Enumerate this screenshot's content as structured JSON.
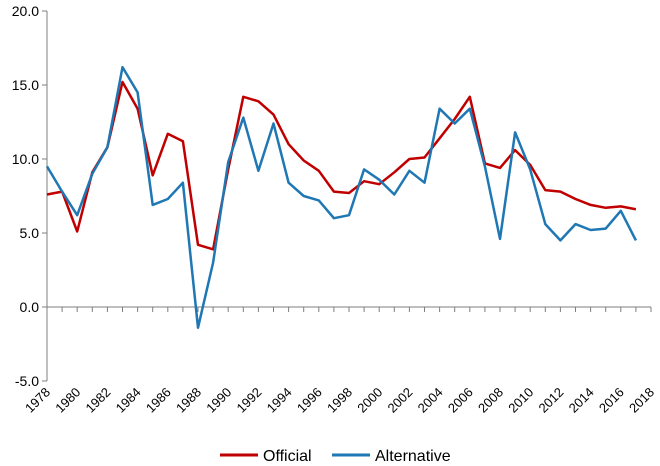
{
  "chart_data": {
    "type": "line",
    "title": "",
    "xlabel": "",
    "ylabel": "",
    "ylim": [
      -5.0,
      20.0
    ],
    "yticks": [
      "20.0",
      "15.0",
      "10.0",
      "5.0",
      "0.0",
      "-5.0"
    ],
    "xticks": [
      "1978",
      "1980",
      "1982",
      "1984",
      "1986",
      "1988",
      "1990",
      "1992",
      "1994",
      "1996",
      "1998",
      "2000",
      "2002",
      "2004",
      "2006",
      "2008",
      "2010",
      "2012",
      "2014",
      "2016",
      "2018"
    ],
    "x": [
      1978,
      1979,
      1980,
      1981,
      1982,
      1983,
      1984,
      1985,
      1986,
      1987,
      1988,
      1989,
      1990,
      1991,
      1992,
      1993,
      1994,
      1995,
      1996,
      1997,
      1998,
      1999,
      2000,
      2001,
      2002,
      2003,
      2004,
      2005,
      2006,
      2007,
      2008,
      2009,
      2010,
      2011,
      2012,
      2013,
      2014,
      2015,
      2016,
      2017,
      2018
    ],
    "grid": false,
    "legend_position": "bottom",
    "series": [
      {
        "name": "Official",
        "color": "#c00000",
        "values": [
          7.6,
          7.8,
          5.1,
          9.1,
          10.8,
          15.2,
          13.4,
          8.9,
          11.7,
          11.2,
          4.2,
          3.9,
          9.3,
          14.2,
          13.9,
          13.0,
          11.0,
          9.9,
          9.2,
          7.8,
          7.7,
          8.5,
          8.3,
          9.1,
          10.0,
          10.1,
          11.4,
          12.7,
          14.2,
          9.7,
          9.4,
          10.6,
          9.6,
          7.9,
          7.8,
          7.3,
          6.9,
          6.7,
          6.8,
          6.6,
          null
        ]
      },
      {
        "name": "Alternative",
        "color": "#1f77b4",
        "values": [
          9.5,
          7.8,
          6.2,
          9.0,
          10.8,
          16.2,
          14.5,
          6.9,
          7.3,
          8.4,
          -1.4,
          3.0,
          9.8,
          12.8,
          9.2,
          12.4,
          8.4,
          7.5,
          7.2,
          6.0,
          6.2,
          9.3,
          8.6,
          7.6,
          9.2,
          8.4,
          13.4,
          12.4,
          13.4,
          9.5,
          4.6,
          11.8,
          9.3,
          5.6,
          4.5,
          5.6,
          5.2,
          5.3,
          6.5,
          4.5,
          null
        ]
      }
    ]
  }
}
